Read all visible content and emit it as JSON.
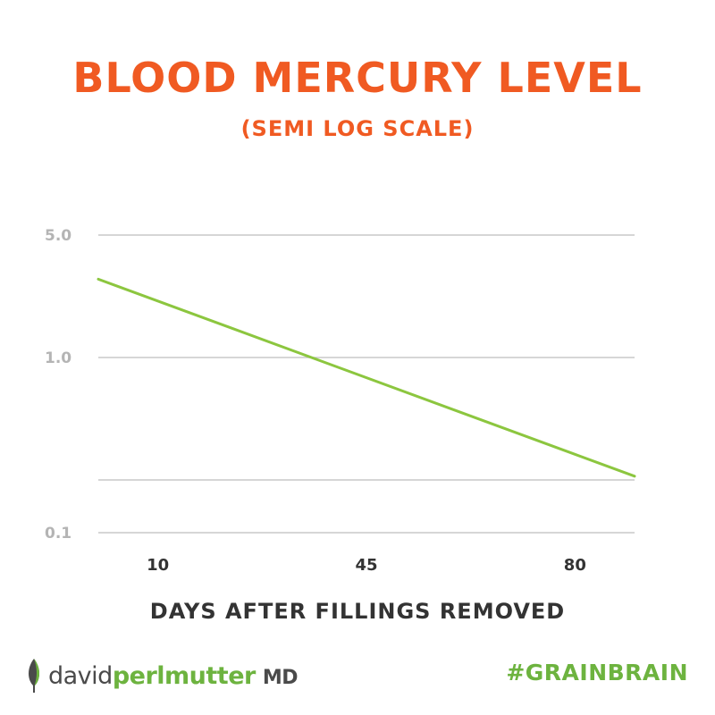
{
  "colors": {
    "title": "#f05a22",
    "line": "#8cc63f",
    "grid": "#c8c8c8",
    "y_tick": "#b4b4b4",
    "x_tick": "#333333",
    "brand_green": "#6db33f"
  },
  "chart_data": {
    "type": "line",
    "title": "BLOOD MERCURY LEVEL",
    "subtitle": "(SEMI LOG SCALE)",
    "xlabel": "DAYS AFTER FILLINGS REMOVED",
    "ylabel": "",
    "y_scale": "log",
    "y_ticks": [
      {
        "value": 5.0,
        "label": "5.0"
      },
      {
        "value": 1.0,
        "label": "1.0"
      },
      {
        "value": 0.2,
        "label": ""
      },
      {
        "value": 0.1,
        "label": "0.1"
      }
    ],
    "ylim": [
      0.1,
      5.0
    ],
    "x_ticks": [
      {
        "value": 10,
        "label": "10"
      },
      {
        "value": 45,
        "label": "45"
      },
      {
        "value": 80,
        "label": "80"
      }
    ],
    "xlim": [
      0,
      90
    ],
    "grid": true,
    "legend": "none",
    "series": [
      {
        "x": [
          0,
          90
        ],
        "y": [
          2.8,
          0.21
        ]
      }
    ]
  },
  "branding": {
    "logo_first": "david",
    "logo_last": "perlmutter",
    "logo_suffix": "MD",
    "hashtag": "#GRAINBRAIN",
    "logo_icon": "leaf-icon"
  }
}
